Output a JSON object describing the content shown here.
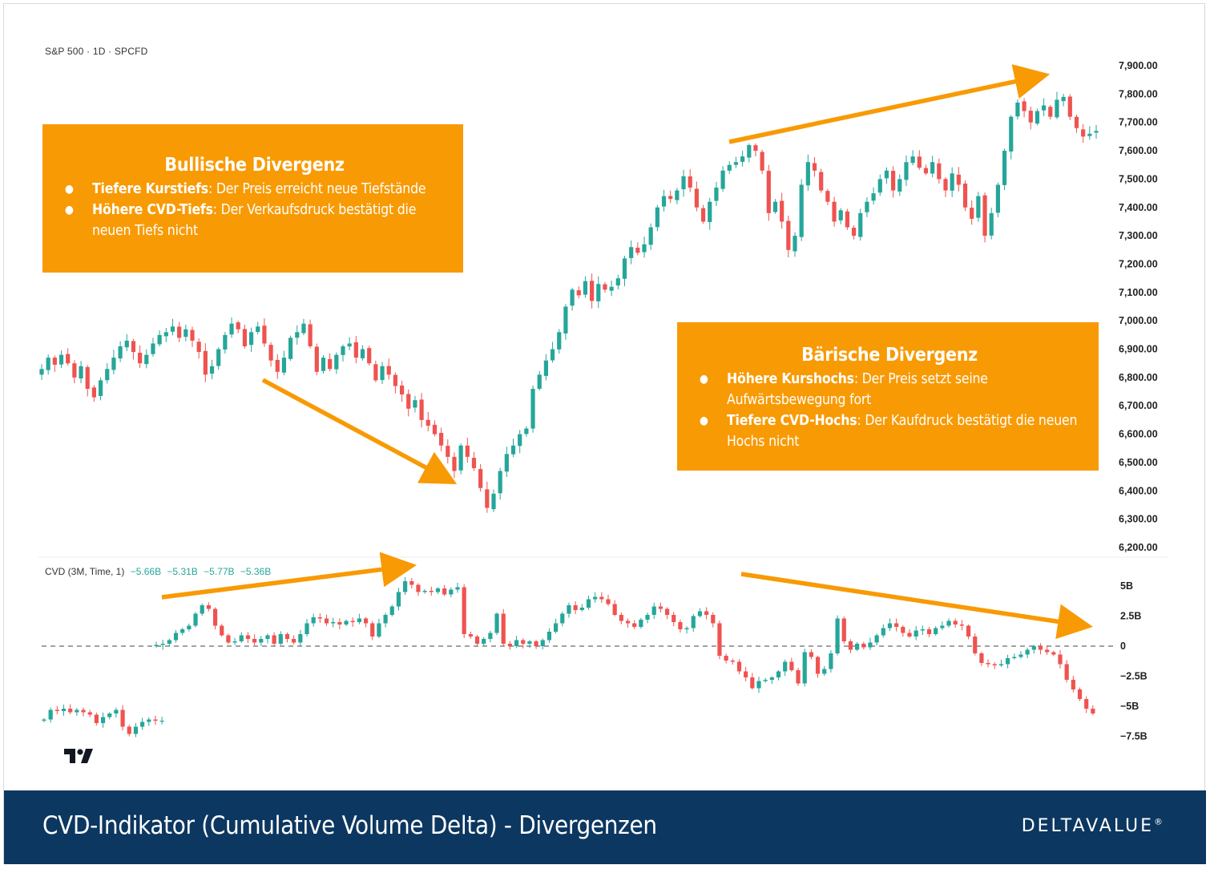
{
  "chart_data": [
    {
      "type": "candlestick",
      "pane": "price",
      "symbol_label": "S&P 500 · 1D · SPCFD",
      "ylim": [
        6150,
        7950
      ],
      "y_ticks": [
        {
          "value": 7900,
          "label": "7,900.00"
        },
        {
          "value": 7800,
          "label": "7,800.00"
        },
        {
          "value": 7700,
          "label": "7,700.00"
        },
        {
          "value": 7600,
          "label": "7,600.00"
        },
        {
          "value": 7500,
          "label": "7,500.00"
        },
        {
          "value": 7400,
          "label": "7,400.00"
        },
        {
          "value": 7300,
          "label": "7,300.00"
        },
        {
          "value": 7200,
          "label": "7,200.00"
        },
        {
          "value": 7100,
          "label": "7,100.00"
        },
        {
          "value": 7000,
          "label": "7,000.00"
        },
        {
          "value": 6900,
          "label": "6,900.00"
        },
        {
          "value": 6800,
          "label": "6,800.00"
        },
        {
          "value": 6700,
          "label": "6,700.00"
        },
        {
          "value": 6600,
          "label": "6,600.00"
        },
        {
          "value": 6500,
          "label": "6,500.00"
        },
        {
          "value": 6400,
          "label": "6,400.00"
        },
        {
          "value": 6300,
          "label": "6,300.00"
        },
        {
          "value": 6200,
          "label": "6,200.00"
        }
      ],
      "close_path": [
        6830,
        6870,
        6845,
        6880,
        6850,
        6800,
        6840,
        6760,
        6730,
        6790,
        6830,
        6870,
        6910,
        6930,
        6890,
        6850,
        6880,
        6920,
        6950,
        6960,
        6980,
        6940,
        6970,
        6930,
        6890,
        6810,
        6840,
        6900,
        6950,
        6990,
        6970,
        6910,
        6960,
        6980,
        6920,
        6860,
        6820,
        6870,
        6940,
        6960,
        6990,
        6910,
        6820,
        6870,
        6830,
        6880,
        6910,
        6920,
        6870,
        6900,
        6850,
        6790,
        6840,
        6810,
        6770,
        6740,
        6690,
        6720,
        6650,
        6630,
        6600,
        6560,
        6520,
        6470,
        6560,
        6520,
        6480,
        6410,
        6340,
        6390,
        6470,
        6530,
        6560,
        6600,
        6620,
        6760,
        6810,
        6860,
        6900,
        6960,
        7050,
        7110,
        7090,
        7140,
        7070,
        7130,
        7110,
        7120,
        7150,
        7220,
        7260,
        7240,
        7270,
        7330,
        7400,
        7440,
        7430,
        7460,
        7510,
        7470,
        7400,
        7350,
        7420,
        7470,
        7530,
        7550,
        7560,
        7580,
        7620,
        7600,
        7530,
        7380,
        7420,
        7350,
        7250,
        7300,
        7480,
        7560,
        7530,
        7460,
        7420,
        7350,
        7390,
        7330,
        7300,
        7380,
        7420,
        7450,
        7500,
        7530,
        7460,
        7500,
        7560,
        7580,
        7540,
        7520,
        7560,
        7500,
        7460,
        7520,
        7480,
        7400,
        7360,
        7440,
        7300,
        7380,
        7480,
        7600,
        7720,
        7770,
        7740,
        7700,
        7740,
        7760,
        7720,
        7780,
        7790,
        7720,
        7680,
        7650,
        7660,
        7670
      ],
      "annotation_arrows": [
        {
          "from": [
            3,
            6780
          ],
          "to": [
            5,
            6430
          ],
          "units": "approx"
        },
        {
          "from": [
            7,
            7630
          ],
          "to": [
            9,
            7890
          ],
          "units": "approx"
        }
      ]
    },
    {
      "type": "candlestick",
      "pane": "indicator",
      "legend_label": "CVD (3M, Time, 1)",
      "legend_values": [
        "−5.66B",
        "−5.31B",
        "−5.77B",
        "−5.36B"
      ],
      "ylim": [
        -8.8,
        6.6
      ],
      "zero_line": 0,
      "y_ticks": [
        {
          "value": 5,
          "label": "5B"
        },
        {
          "value": 2.5,
          "label": "2.5B"
        },
        {
          "value": 0,
          "label": "0"
        },
        {
          "value": -2.5,
          "label": "−2.5B"
        },
        {
          "value": -5,
          "label": "−5B"
        },
        {
          "value": -7.5,
          "label": "−7.5B"
        }
      ],
      "segment_1_close_path": [
        -6.1,
        -5.3,
        -5.4,
        -5.2,
        -5.5,
        -5.3,
        -5.5,
        -5.7,
        -6.4,
        -5.9,
        -5.6,
        -5.3,
        -6.7,
        -7.3,
        -6.7,
        -6.3,
        -6.1,
        -6.2,
        -6.2
      ],
      "segment_2_close_path": [
        0.1,
        0.2,
        0.5,
        1.1,
        1.4,
        1.7,
        2.7,
        3.4,
        3.1,
        1.7,
        0.9,
        0.3,
        0.4,
        0.9,
        0.6,
        0.3,
        0.6,
        0.9,
        0.2,
        1.0,
        0.6,
        0.3,
        1.0,
        1.9,
        2.4,
        2.3,
        1.9,
        2.0,
        1.8,
        2.1,
        2.0,
        2.3,
        1.9,
        0.8,
        1.9,
        2.6,
        3.3,
        4.5,
        5.4,
        5.1,
        4.5,
        4.6,
        4.5,
        4.8,
        4.3,
        4.7,
        4.9,
        1.0,
        0.8,
        0.2,
        0.6,
        1.1,
        2.7,
        0.2,
        0.0,
        0.5,
        0.2,
        0.4,
        0.0,
        0.5,
        1.2,
        1.9,
        2.7,
        3.4,
        3.0,
        3.2,
        3.9,
        4.1,
        3.9,
        3.5,
        2.6,
        2.1,
        1.9,
        1.6,
        2.2,
        2.6,
        3.3,
        3.1,
        2.6,
        2.0,
        1.4,
        1.5,
        2.5,
        2.9,
        2.6,
        1.9,
        -0.8,
        -1.2,
        -1.3,
        -2.1,
        -2.6,
        -3.5,
        -2.9,
        -2.8,
        -2.6,
        -2.1,
        -1.3,
        -2.0,
        -3.1,
        -0.5,
        -0.9,
        -2.3,
        -1.9,
        -0.6,
        2.3,
        0.4,
        -0.3,
        0.2,
        -0.1,
        0.3,
        0.9,
        1.5,
        1.9,
        1.6,
        1.1,
        0.8,
        1.3,
        1.4,
        1.0,
        1.5,
        1.7,
        2.1,
        1.8,
        1.7,
        0.8,
        -0.6,
        -1.4,
        -1.5,
        -1.6,
        -1.5,
        -1.0,
        -0.9,
        -0.7,
        -0.3,
        0.0,
        -0.3,
        -0.5,
        -0.7,
        -1.5,
        -2.8,
        -3.6,
        -4.4,
        -5.2,
        -5.6
      ],
      "annotation_arrows": [
        {
          "from": [
            1,
            4.1
          ],
          "to": [
            4,
            6.4
          ],
          "units": "approx"
        },
        {
          "from": [
            7,
            6.1
          ],
          "to": [
            9,
            1.5
          ],
          "units": "approx"
        }
      ]
    }
  ],
  "annotations": {
    "bullish": {
      "title": "Bullische Divergenz",
      "items": [
        {
          "bold": "Tiefere Kurstiefs",
          "text": ": Der Preis erreicht neue Tiefstände"
        },
        {
          "bold": "Höhere CVD-Tiefs",
          "text": ": Der Verkaufsdruck bestätigt die neuen Tiefs nicht"
        }
      ]
    },
    "bearish": {
      "title": "Bärische Divergenz",
      "items": [
        {
          "bold": "Höhere Kurshochs",
          "text": ": Der Preis setzt seine Aufwärtsbewegung fort"
        },
        {
          "bold": "Tiefere CVD-Hochs",
          "text": ": Der Kaufdruck bestätigt die neuen Hochs nicht"
        }
      ]
    }
  },
  "bullet_glyph": "●",
  "footer": {
    "title": "CVD-Indikator (Cumulative Volume Delta) - Divergenzen",
    "brand": "DELTAVALUE",
    "brand_mark": "®"
  },
  "colors": {
    "up": "#26a69a",
    "down": "#ef5350",
    "annotation": "#f89a04",
    "arrow": "#f89a04",
    "footer_bg": "#0c3760"
  },
  "icons": {
    "logo": "tradingview-logo-icon",
    "bullet": "bullet-dot-icon"
  }
}
